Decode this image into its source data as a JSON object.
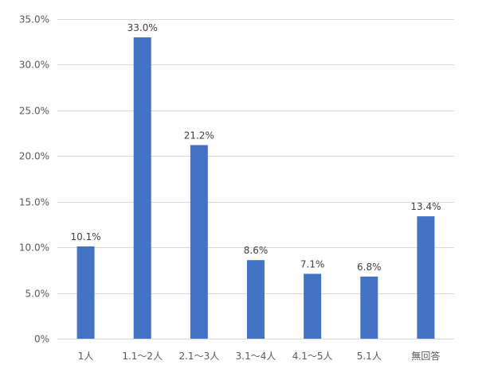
{
  "chart_data": {
    "type": "bar",
    "categories": [
      "1人",
      "1.1～2人",
      "2.1～3人",
      "3.1～4人",
      "4.1～5人",
      "5.1人",
      "無回答"
    ],
    "values": [
      10.1,
      33.0,
      21.2,
      8.6,
      7.1,
      6.8,
      13.4
    ],
    "data_labels": [
      "10.1%",
      "33.0%",
      "21.2%",
      "8.6%",
      "7.1%",
      "6.8%",
      "13.4%"
    ],
    "y_ticks": [
      0,
      5,
      10,
      15,
      20,
      25,
      30,
      35
    ],
    "y_tick_labels": [
      "0%",
      "5.0%",
      "10.0%",
      "15.0%",
      "20.0%",
      "25.0%",
      "30.0%",
      "35.0%"
    ],
    "ylim": [
      0,
      35
    ],
    "grid": true,
    "legend": "none",
    "colors": {
      "bar": "#4472C4",
      "grid": "#D9D9D9",
      "text": "#595959",
      "label": "#404040"
    }
  }
}
